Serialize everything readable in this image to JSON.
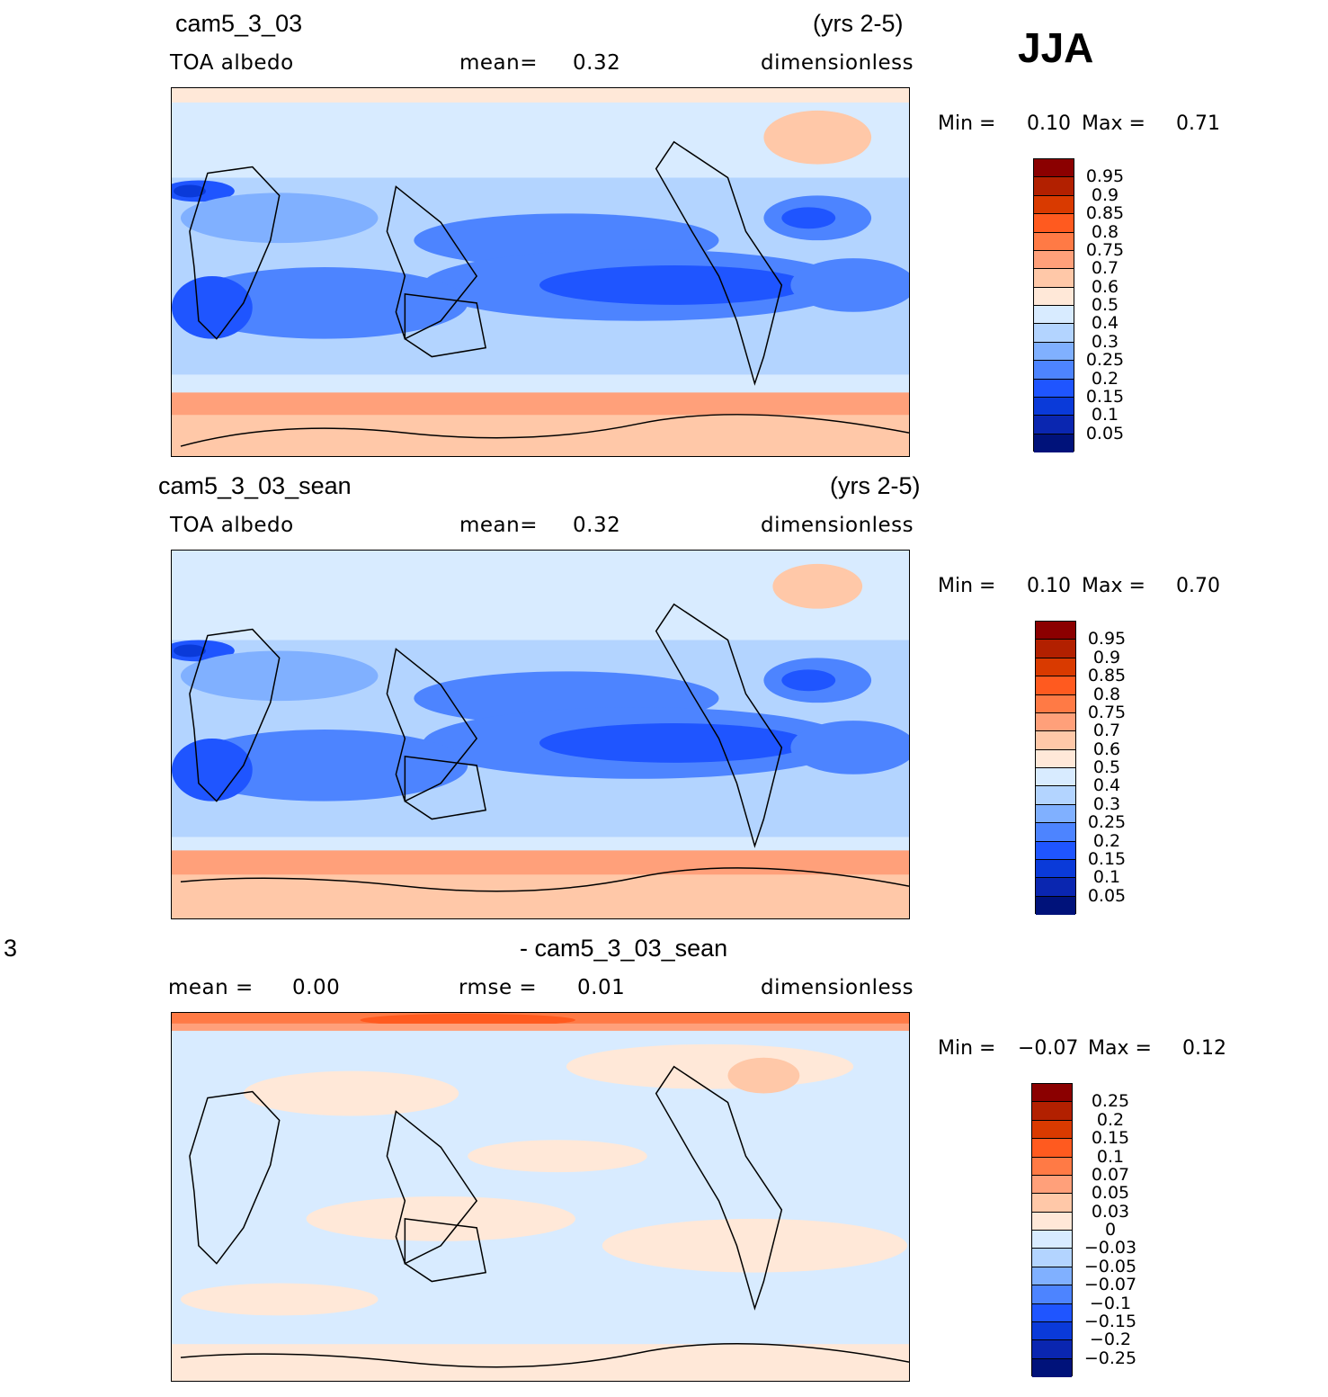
{
  "season": "JJA",
  "panels": [
    {
      "case_name": "cam5_3_03",
      "years": "(yrs 2-5)",
      "variable": "TOA albedo",
      "stat_label": "mean=",
      "stat_value": "0.32",
      "units": "dimensionless",
      "min_label": "Min =",
      "min_value": "0.10",
      "max_label": "Max =",
      "max_value": "0.71"
    },
    {
      "case_name": "cam5_3_03_sean",
      "years": "(yrs 2-5)",
      "variable": "TOA albedo",
      "stat_label": "mean=",
      "stat_value": "0.32",
      "units": "dimensionless",
      "min_label": "Min =",
      "min_value": "0.10",
      "max_label": "Max =",
      "max_value": "0.70"
    },
    {
      "left_fragment": "3",
      "case_name": "- cam5_3_03_sean",
      "mean_label": "mean =",
      "mean_value": "0.00",
      "rmse_label": "rmse =",
      "rmse_value": "0.01",
      "units": "dimensionless",
      "min_label": "Min =",
      "min_value": "−0.07",
      "max_label": "Max =",
      "max_value": "0.12"
    }
  ],
  "colorbar_abs": {
    "labels": [
      "0.95",
      "0.9",
      "0.85",
      "0.8",
      "0.75",
      "0.7",
      "0.6",
      "0.5",
      "0.4",
      "0.3",
      "0.25",
      "0.2",
      "0.15",
      "0.1",
      "0.05"
    ],
    "colors": [
      "#8b0000",
      "#b22000",
      "#d93a00",
      "#ff5a1f",
      "#ff7a45",
      "#ffa07a",
      "#ffc8a8",
      "#ffe8d8",
      "#d8ebff",
      "#b3d4ff",
      "#80b0ff",
      "#4d84ff",
      "#1f55ff",
      "#0a3ad9",
      "#0a26b0",
      "#00127a"
    ]
  },
  "colorbar_diff": {
    "labels": [
      "0.25",
      "0.2",
      "0.15",
      "0.1",
      "0.07",
      "0.05",
      "0.03",
      "0",
      "−0.03",
      "−0.05",
      "−0.07",
      "−0.1",
      "−0.15",
      "−0.2",
      "−0.25"
    ],
    "colors": [
      "#8b0000",
      "#b22000",
      "#d93a00",
      "#ff5a1f",
      "#ff7a45",
      "#ffa07a",
      "#ffc8a8",
      "#ffe8d8",
      "#d8ebff",
      "#b3d4ff",
      "#80b0ff",
      "#4d84ff",
      "#1f55ff",
      "#0a3ad9",
      "#0a26b0",
      "#00127a"
    ]
  }
}
